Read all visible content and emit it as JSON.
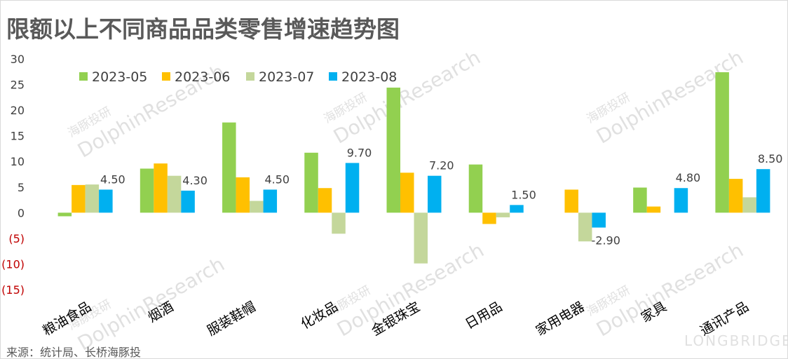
{
  "chart_data": {
    "type": "bar",
    "title": "限额以上不同商品品类零售增速趋势图",
    "source": "来源：统计局、长桥海豚投",
    "categories": [
      "粮油食品",
      "烟酒",
      "服装鞋帽",
      "化妆品",
      "金银珠宝",
      "日用品",
      "家用电器",
      "家具",
      "通讯产品"
    ],
    "series": [
      {
        "name": "2023-05",
        "color": "#92d050",
        "values": [
          -0.7,
          8.6,
          17.6,
          11.7,
          24.4,
          9.4,
          0,
          4.9,
          27.4
        ]
      },
      {
        "name": "2023-06",
        "color": "#ffc000",
        "values": [
          5.4,
          9.6,
          6.9,
          4.8,
          7.8,
          -2.2,
          4.5,
          1.2,
          6.6
        ]
      },
      {
        "name": "2023-07",
        "color": "#c4d79b",
        "values": [
          5.5,
          7.2,
          2.3,
          -4.1,
          -9.9,
          -0.9,
          -5.6,
          0,
          3.0
        ]
      },
      {
        "name": "2023-08",
        "color": "#00b0f0",
        "values": [
          4.5,
          4.3,
          4.5,
          9.7,
          7.2,
          1.5,
          -2.9,
          4.8,
          8.5
        ]
      }
    ],
    "data_labels": [
      "4.50",
      "4.30",
      "4.50",
      "9.70",
      "7.20",
      "1.50",
      "-2.90",
      "4.80",
      "8.50"
    ],
    "y_ticks": [
      {
        "value": 30,
        "label": "30"
      },
      {
        "value": 25,
        "label": "25"
      },
      {
        "value": 20,
        "label": "20"
      },
      {
        "value": 15,
        "label": "15"
      },
      {
        "value": 10,
        "label": "10"
      },
      {
        "value": 5,
        "label": "5"
      },
      {
        "value": 0,
        "label": "0"
      },
      {
        "value": -5,
        "label": "(5)"
      },
      {
        "value": -10,
        "label": "(10)"
      },
      {
        "value": -15,
        "label": "(15)"
      }
    ],
    "ylim": [
      -15,
      30
    ],
    "grid": false,
    "legend_position": "top-left",
    "colors": {
      "axis_text": "#404040",
      "negative_tick": "#c00000",
      "title": "#595959"
    }
  },
  "watermarks": [
    "海豚投研",
    "DolphinResearch",
    "LONGBRIDGE"
  ]
}
